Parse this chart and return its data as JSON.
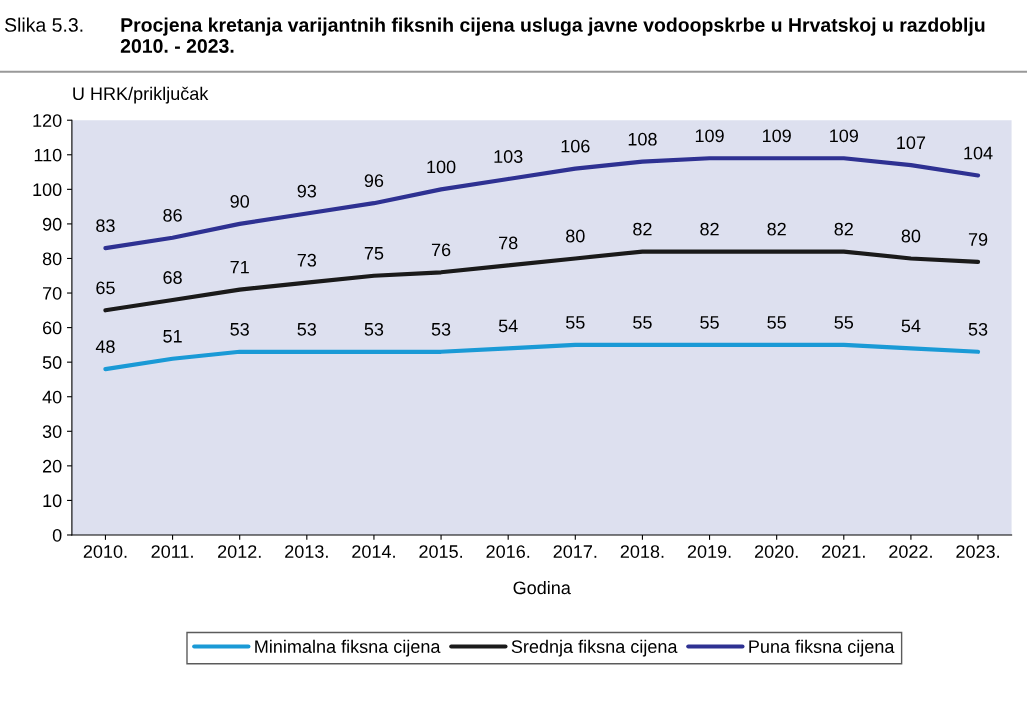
{
  "chart_data": {
    "type": "line",
    "title": "Slika 5.3.",
    "subtitle": "Procjena kretanja varijantnih fiksnih cijena usluga javne vodoopskrbe u Hrvatskoj u razdoblju 2010. - 2023.",
    "ylabel": "U HRK/priključak",
    "xlabel": "Godina",
    "categories": [
      "2010.",
      "2011.",
      "2012.",
      "2013.",
      "2014.",
      "2015.",
      "2016.",
      "2017.",
      "2018.",
      "2019.",
      "2020.",
      "2021.",
      "2022.",
      "2023."
    ],
    "series": [
      {
        "name": "Minimalna fiksna cijena",
        "color": "#1a9ad6",
        "values": [
          48,
          51,
          53,
          53,
          53,
          53,
          54,
          55,
          55,
          55,
          55,
          55,
          54,
          53
        ]
      },
      {
        "name": "Srednja fiksna cijena",
        "color": "#1a1a1a",
        "values": [
          65,
          68,
          71,
          73,
          75,
          76,
          78,
          80,
          82,
          82,
          82,
          82,
          80,
          79
        ]
      },
      {
        "name": "Puna fiksna cijena",
        "color": "#2e3192",
        "values": [
          83,
          86,
          90,
          93,
          96,
          100,
          103,
          106,
          108,
          109,
          109,
          109,
          107,
          104
        ]
      }
    ],
    "ylim": [
      0,
      120
    ],
    "yticks": [
      0,
      10,
      20,
      30,
      40,
      50,
      60,
      70,
      80,
      90,
      100,
      110,
      120
    ],
    "data_labels": true,
    "grid": false,
    "legend": "bottom",
    "marker": "none",
    "line_style": "solid"
  }
}
